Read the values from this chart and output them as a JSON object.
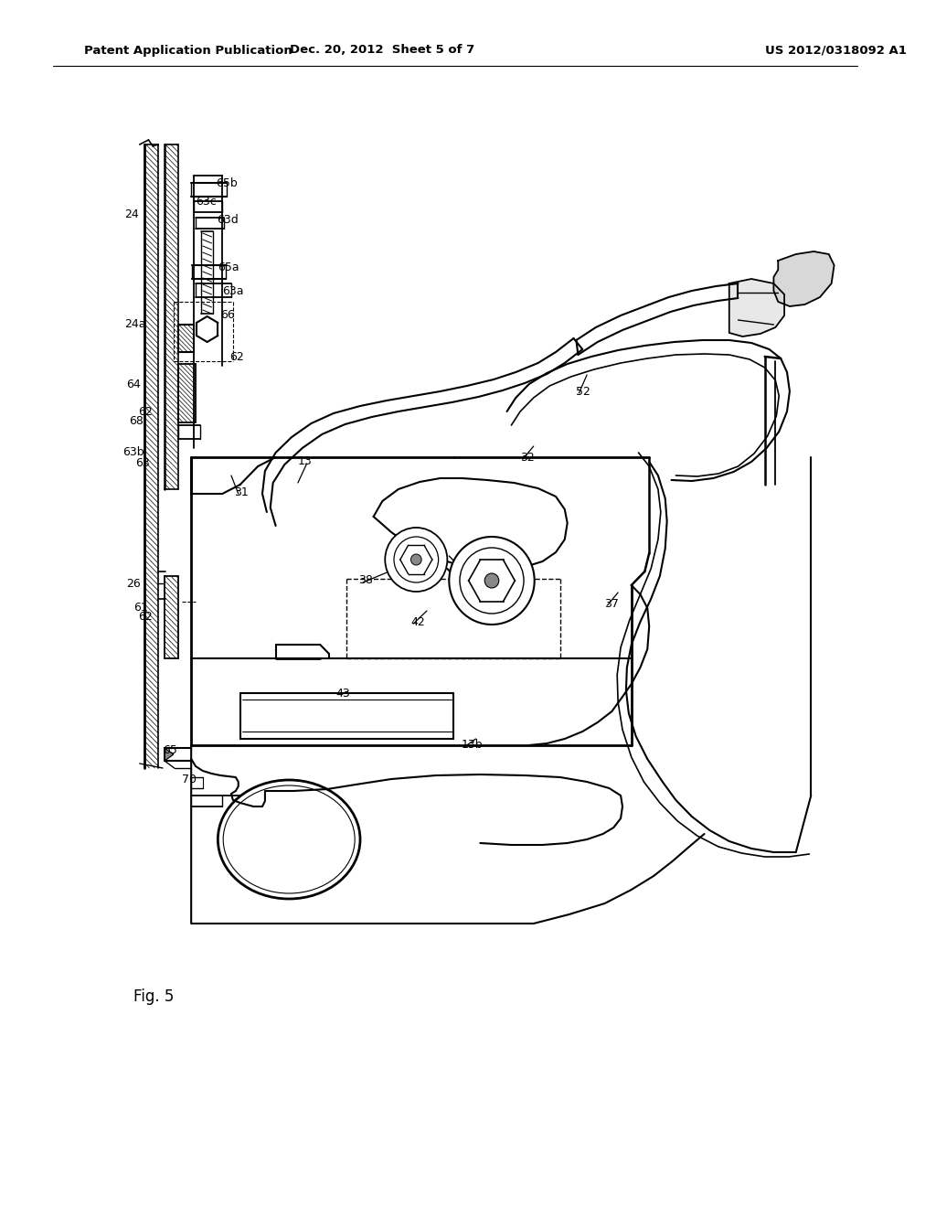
{
  "bg_color": "#ffffff",
  "header_left": "Patent Application Publication",
  "header_center": "Dec. 20, 2012  Sheet 5 of 7",
  "header_right": "US 2012/0318092 A1",
  "fig_label": "Fig. 5"
}
